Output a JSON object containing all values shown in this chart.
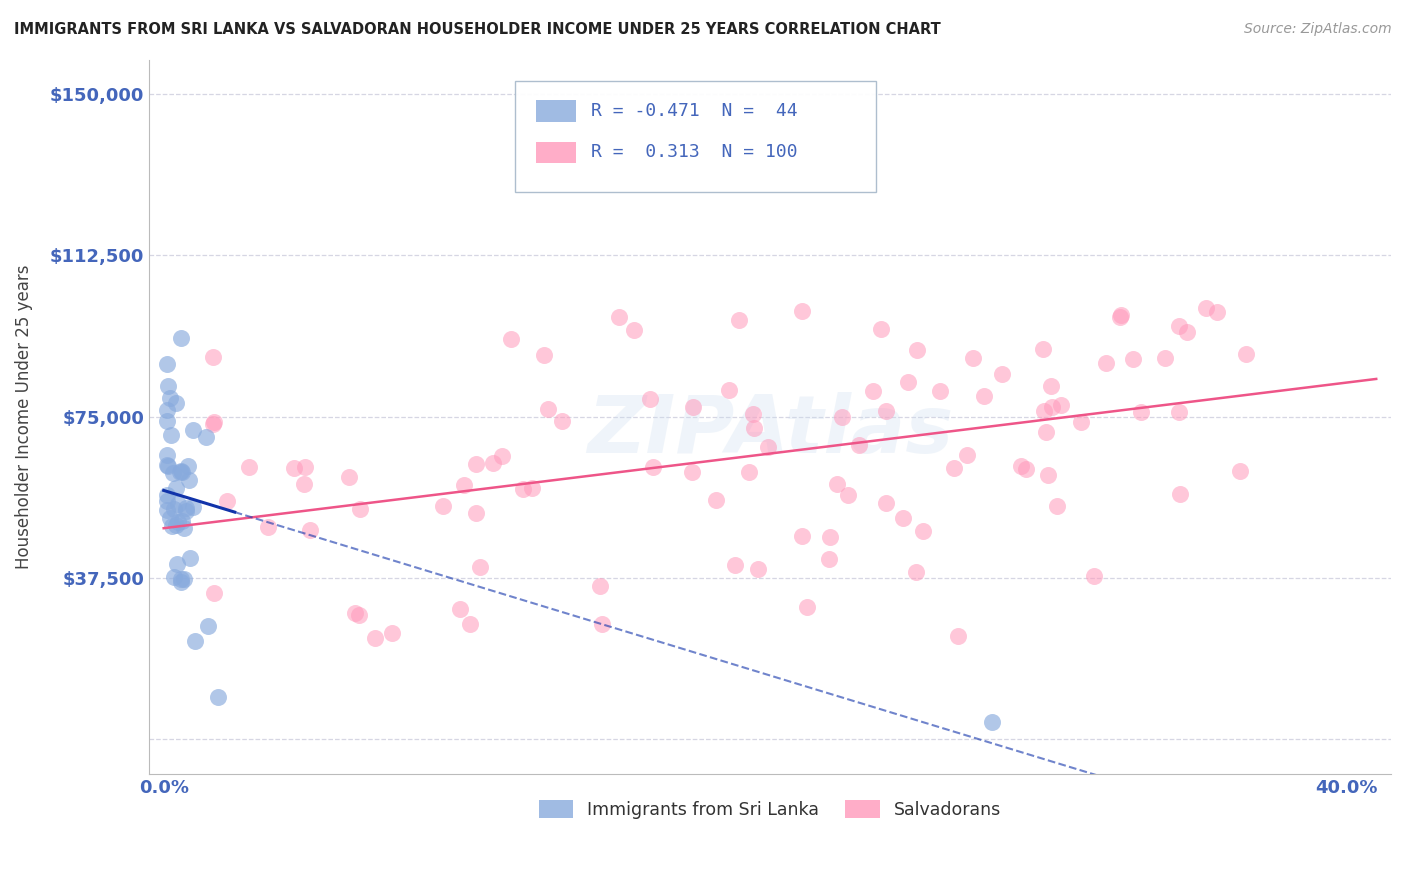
{
  "title": "IMMIGRANTS FROM SRI LANKA VS SALVADORAN HOUSEHOLDER INCOME UNDER 25 YEARS CORRELATION CHART",
  "source": "Source: ZipAtlas.com",
  "ylabel": "Householder Income Under 25 years",
  "watermark": "ZIPAtlas",
  "xlim": [
    -0.005,
    0.415
  ],
  "ylim": [
    -8000,
    158000
  ],
  "ytick_positions": [
    0,
    37500,
    75000,
    112500,
    150000
  ],
  "ytick_labels": [
    "",
    "$37,500",
    "$75,000",
    "$112,500",
    "$150,000"
  ],
  "xtick_positions": [
    0.0,
    0.1,
    0.2,
    0.3,
    0.4
  ],
  "xtick_labels": [
    "0.0%",
    "",
    "",
    "",
    "40.0%"
  ],
  "legend1_label": "Immigrants from Sri Lanka",
  "legend2_label": "Salvadorans",
  "r1": -0.471,
  "n1": 44,
  "r2": 0.313,
  "n2": 100,
  "color1": "#88AADD",
  "color2": "#FF99BB",
  "line_color1": "#1133AA",
  "line_color2": "#EE5588",
  "bg_color": "#FFFFFF",
  "grid_color": "#CCCCDD",
  "title_color": "#222222",
  "axis_color": "#4466BB",
  "ylabel_color": "#444444",
  "source_color": "#999999"
}
